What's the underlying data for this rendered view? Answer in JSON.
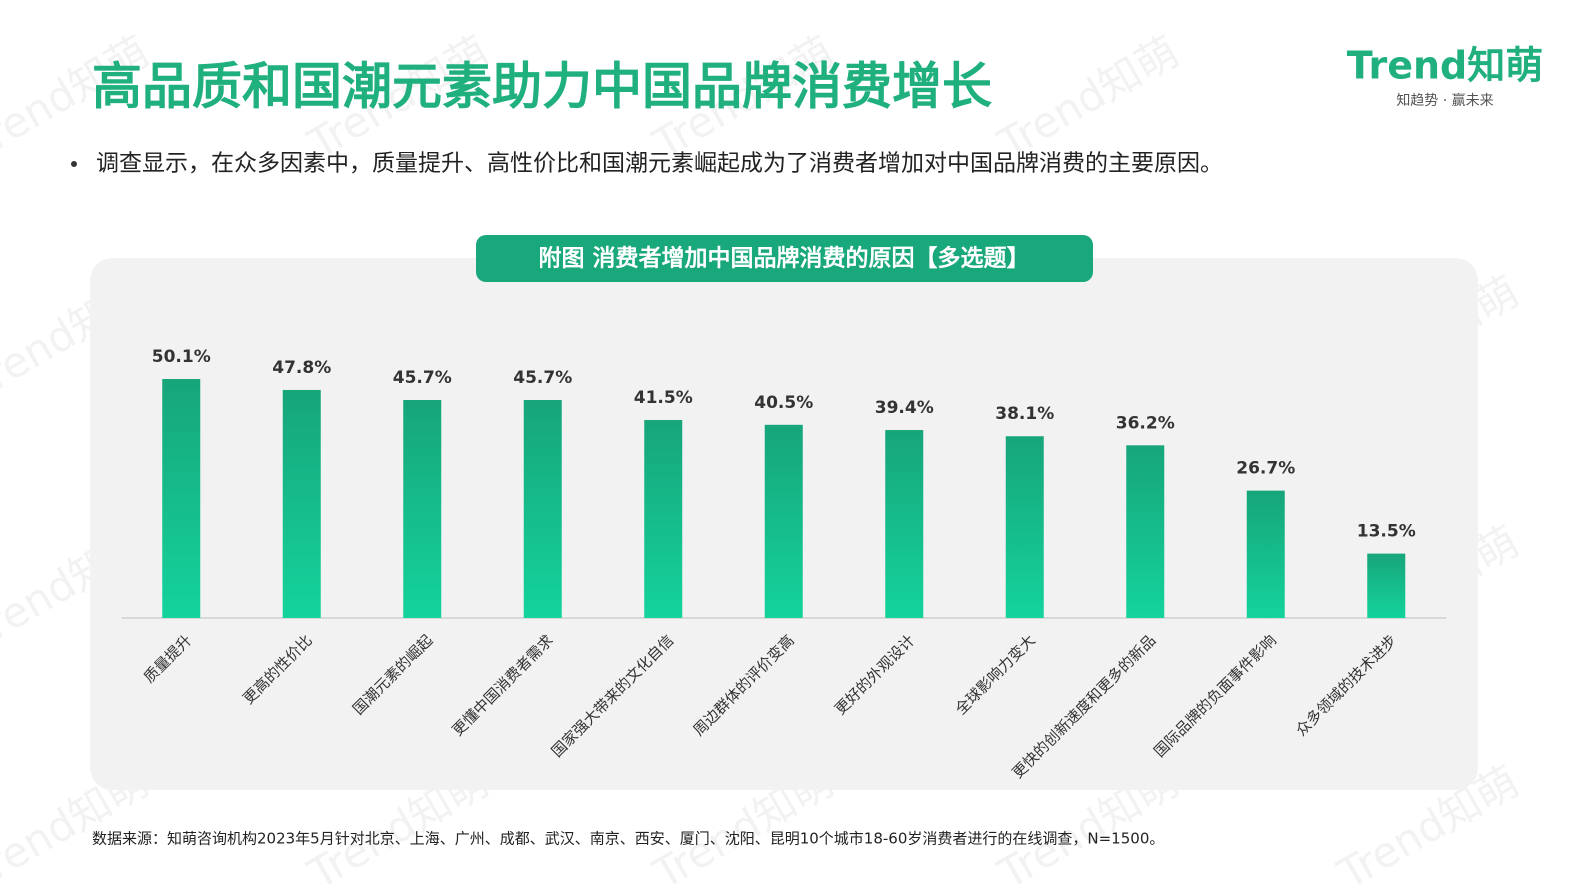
{
  "logo": {
    "name": "Trend知萌",
    "slogan": "知趋势 · 赢未来"
  },
  "header": {
    "title": "高品质和国潮元素助力中国品牌消费增长",
    "bullet": "调查显示，在众多因素中，质量提升、高性价比和国潮元素崛起成为了消费者增加对中国品牌消费的主要原因。"
  },
  "chart_data": {
    "type": "bar",
    "title": "附图 消费者增加中国品牌消费的原因【多选题】",
    "categories": [
      "质量提升",
      "更高的性价比",
      "国潮元素的崛起",
      "更懂中国消费者需求",
      "国家强大带来的文化自信",
      "周边群体的评价变高",
      "更好的外观设计",
      "全球影响力变大",
      "更快的创新速度和更多的新品",
      "国际品牌的负面事件影响",
      "众多领域的技术进步"
    ],
    "values": [
      50.1,
      47.8,
      45.7,
      45.7,
      41.5,
      40.5,
      39.4,
      38.1,
      36.2,
      26.7,
      13.5
    ],
    "value_labels": [
      "50.1%",
      "47.8%",
      "45.7%",
      "45.7%",
      "41.5%",
      "40.5%",
      "39.4%",
      "38.1%",
      "36.2%",
      "26.7%",
      "13.5%"
    ],
    "color": "#17a57a"
  },
  "footer": {
    "source": "数据来源：知萌咨询机构2023年5月针对北京、上海、广州、成都、武汉、南京、西安、厦门、沈阳、昆明10个城市18-60岁消费者进行的在线调查，N=1500。"
  }
}
